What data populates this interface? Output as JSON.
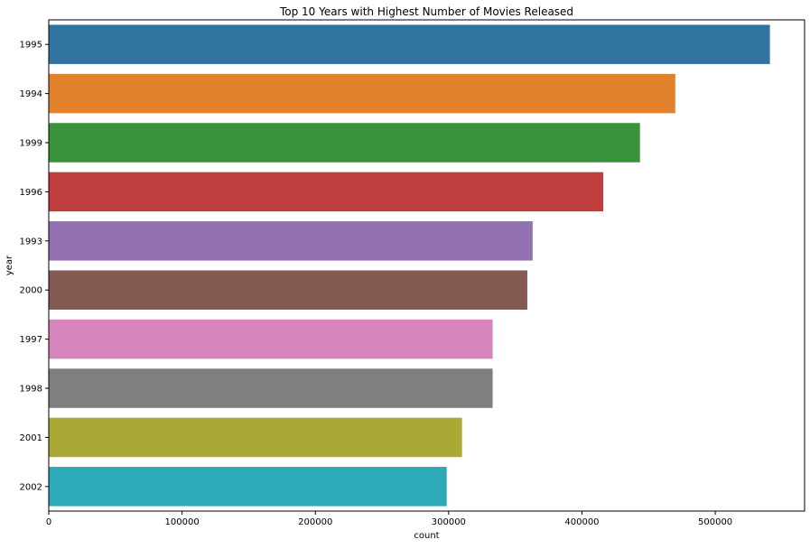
{
  "chart_data": {
    "type": "bar",
    "orientation": "horizontal",
    "title": "Top 10 Years with Highest Number of Movies Released",
    "xlabel": "count",
    "ylabel": "year",
    "categories": [
      "1995",
      "1994",
      "1999",
      "1996",
      "1993",
      "2000",
      "1997",
      "1998",
      "2001",
      "2002"
    ],
    "values": [
      541000,
      470000,
      443500,
      416000,
      363000,
      359000,
      333000,
      333000,
      310000,
      298500
    ],
    "colors": [
      "#3274a1",
      "#e1812c",
      "#3a923a",
      "#c03d3e",
      "#9372b2",
      "#845b53",
      "#d684bd",
      "#7f7f7f",
      "#a9aa35",
      "#2ea9b8"
    ],
    "xlim": [
      0,
      567000
    ],
    "xticks": [
      0,
      100000,
      200000,
      300000,
      400000,
      500000
    ],
    "grid": false,
    "legend": false
  }
}
